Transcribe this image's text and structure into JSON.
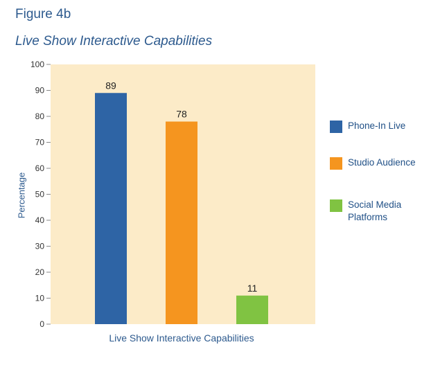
{
  "figure_label": "Figure 4b",
  "colors": {
    "plot_background": "#fcebc8",
    "axis_text": "#333333",
    "label_text": "#2d5a8e"
  },
  "chart_data": {
    "type": "bar",
    "title": "Live Show Interactive Capabilities",
    "xlabel": "Live Show Interactive Capabilities",
    "ylabel": "Percentage",
    "ylim": [
      0,
      100
    ],
    "yticks": [
      0,
      10,
      20,
      30,
      40,
      50,
      60,
      70,
      80,
      90,
      100
    ],
    "grid": false,
    "legend_position": "right",
    "series": [
      {
        "name": "Phone-In Live",
        "value": 89,
        "color": "#2e64a5"
      },
      {
        "name": "Studio Audience",
        "value": 78,
        "color": "#f5951f"
      },
      {
        "name": "Social Media Platforms",
        "value": 11,
        "color": "#80c342"
      }
    ]
  }
}
